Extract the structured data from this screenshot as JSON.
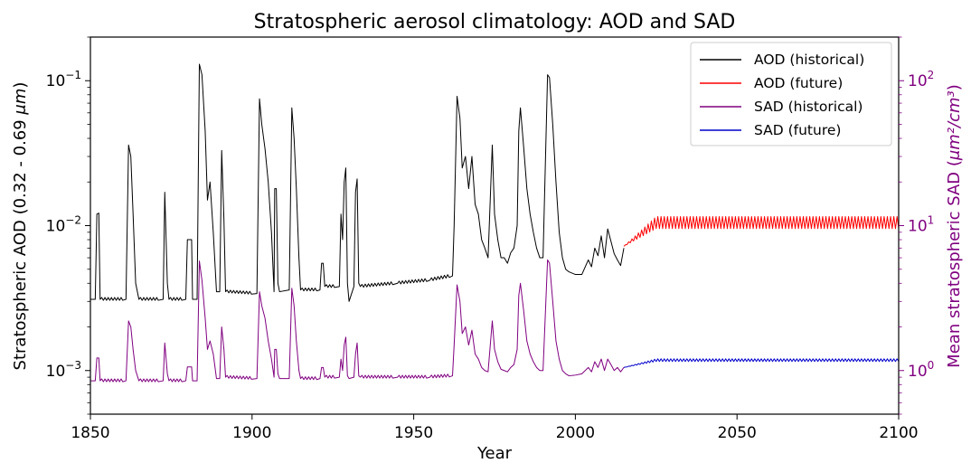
{
  "chart_data": {
    "type": "line",
    "title": "Stratospheric aerosol climatology: AOD and SAD",
    "xlabel": "Year",
    "ylabel_left_base": "Stratospheric AOD (0.32 - 0.69 ",
    "ylabel_left_unit": "μm",
    "ylabel_left_end": ")",
    "ylabel_right_base": "Mean stratospheric SAD (",
    "ylabel_right_unit": "μm²/cm³",
    "ylabel_right_end": ")",
    "xlim": [
      1850,
      2100
    ],
    "ylim_left": [
      0.0005,
      0.2
    ],
    "ylim_right": [
      0.5,
      200
    ],
    "yscale": "log",
    "grid": false,
    "legend_position": "top-right",
    "xticks": [
      "1850",
      "1900",
      "1950",
      "2000",
      "2050",
      "2100"
    ],
    "yticks_left": [
      {
        "base": "10",
        "exp": "−3",
        "value": 0.001
      },
      {
        "base": "10",
        "exp": "−2",
        "value": 0.01
      },
      {
        "base": "10",
        "exp": "−1",
        "value": 0.1
      }
    ],
    "yticks_right": [
      {
        "base": "10",
        "exp": "0",
        "value": 1
      },
      {
        "base": "10",
        "exp": "1",
        "value": 10
      },
      {
        "base": "10",
        "exp": "2",
        "value": 100
      }
    ],
    "colors": {
      "aod_hist": "#000000",
      "aod_fut": "#ff0000",
      "sad_hist": "#800080",
      "sad_fut": "#0000cc",
      "right_axis": "#800080"
    },
    "series": [
      {
        "name": "AOD (historical)",
        "axis": "left",
        "color": "#000000",
        "points": [
          [
            1850,
            0.0031
          ],
          [
            1851.5,
            0.0031
          ],
          [
            1852,
            0.012
          ],
          [
            1852.6,
            0.0122
          ],
          [
            1853,
            0.0031
          ],
          [
            1861,
            0.0031
          ],
          [
            1861.8,
            0.036
          ],
          [
            1862.5,
            0.03
          ],
          [
            1863.2,
            0.012
          ],
          [
            1864,
            0.004
          ],
          [
            1865,
            0.0031
          ],
          [
            1872.5,
            0.0031
          ],
          [
            1873,
            0.017
          ],
          [
            1873.8,
            0.004
          ],
          [
            1874.3,
            0.0031
          ],
          [
            1879.5,
            0.0031
          ],
          [
            1880,
            0.008
          ],
          [
            1881.3,
            0.008
          ],
          [
            1881.6,
            0.0031
          ],
          [
            1883,
            0.0031
          ],
          [
            1883.7,
            0.13
          ],
          [
            1884.5,
            0.11
          ],
          [
            1885.5,
            0.045
          ],
          [
            1886.2,
            0.015
          ],
          [
            1887,
            0.02
          ],
          [
            1888,
            0.009
          ],
          [
            1889,
            0.0035
          ],
          [
            1890,
            0.0035
          ],
          [
            1890.6,
            0.033
          ],
          [
            1891.3,
            0.011
          ],
          [
            1891.8,
            0.0035
          ],
          [
            1901.5,
            0.0034
          ],
          [
            1902.3,
            0.075
          ],
          [
            1903,
            0.05
          ],
          [
            1904,
            0.034
          ],
          [
            1905,
            0.02
          ],
          [
            1906,
            0.009
          ],
          [
            1906.8,
            0.0035
          ],
          [
            1907,
            0.018
          ],
          [
            1907.5,
            0.018
          ],
          [
            1908,
            0.004
          ],
          [
            1908.5,
            0.0035
          ],
          [
            1911.5,
            0.0036
          ],
          [
            1912.3,
            0.065
          ],
          [
            1913,
            0.04
          ],
          [
            1913.7,
            0.018
          ],
          [
            1914.5,
            0.006
          ],
          [
            1915,
            0.0036
          ],
          [
            1921,
            0.0036
          ],
          [
            1921.5,
            0.0055
          ],
          [
            1922,
            0.0055
          ],
          [
            1922.5,
            0.0038
          ],
          [
            1927,
            0.0038
          ],
          [
            1927.5,
            0.012
          ],
          [
            1928,
            0.008
          ],
          [
            1928.5,
            0.02
          ],
          [
            1929,
            0.025
          ],
          [
            1929.5,
            0.004
          ],
          [
            1930,
            0.003
          ],
          [
            1931.5,
            0.0038
          ],
          [
            1932,
            0.017
          ],
          [
            1932.5,
            0.021
          ],
          [
            1933,
            0.004
          ],
          [
            1933.5,
            0.0038
          ],
          [
            1945,
            0.004
          ],
          [
            1955,
            0.0042
          ],
          [
            1962,
            0.0045
          ],
          [
            1962.5,
            0.01
          ],
          [
            1963.4,
            0.078
          ],
          [
            1964.3,
            0.055
          ],
          [
            1965,
            0.025
          ],
          [
            1966,
            0.03
          ],
          [
            1967,
            0.018
          ],
          [
            1968,
            0.03
          ],
          [
            1969,
            0.014
          ],
          [
            1970,
            0.012
          ],
          [
            1971,
            0.008
          ],
          [
            1972,
            0.007
          ],
          [
            1973,
            0.006
          ],
          [
            1974.3,
            0.036
          ],
          [
            1975,
            0.012
          ],
          [
            1976,
            0.008
          ],
          [
            1977,
            0.006
          ],
          [
            1978,
            0.006
          ],
          [
            1979,
            0.0055
          ],
          [
            1980,
            0.0065
          ],
          [
            1981,
            0.007
          ],
          [
            1982,
            0.01
          ],
          [
            1982.5,
            0.045
          ],
          [
            1983,
            0.065
          ],
          [
            1984,
            0.035
          ],
          [
            1985,
            0.018
          ],
          [
            1986,
            0.012
          ],
          [
            1987,
            0.009
          ],
          [
            1988,
            0.007
          ],
          [
            1989,
            0.006
          ],
          [
            1990,
            0.006
          ],
          [
            1991.4,
            0.11
          ],
          [
            1992,
            0.105
          ],
          [
            1993,
            0.05
          ],
          [
            1994,
            0.02
          ],
          [
            1995,
            0.009
          ],
          [
            1996,
            0.006
          ],
          [
            1997,
            0.005
          ],
          [
            1998,
            0.0048
          ],
          [
            2000,
            0.0046
          ],
          [
            2002,
            0.0046
          ],
          [
            2004,
            0.0058
          ],
          [
            2005,
            0.0052
          ],
          [
            2006,
            0.007
          ],
          [
            2007,
            0.0062
          ],
          [
            2008,
            0.0085
          ],
          [
            2009,
            0.006
          ],
          [
            2010,
            0.0095
          ],
          [
            2011,
            0.0078
          ],
          [
            2012,
            0.0064
          ],
          [
            2013,
            0.0058
          ],
          [
            2014,
            0.0053
          ],
          [
            2015,
            0.007
          ]
        ]
      },
      {
        "name": "AOD (future)",
        "axis": "left",
        "color": "#ff0000",
        "start": [
          2015,
          0.0072
        ],
        "ramp_to": [
          2025,
          0.0105
        ],
        "end": [
          2100,
          0.0105
        ],
        "oscillation": [
          0.0095,
          0.0115
        ]
      },
      {
        "name": "SAD (historical)",
        "axis": "right",
        "color": "#800080",
        "points": [
          [
            1850,
            0.85
          ],
          [
            1851.5,
            0.85
          ],
          [
            1852,
            1.22
          ],
          [
            1852.6,
            1.22
          ],
          [
            1853,
            0.85
          ],
          [
            1861,
            0.85
          ],
          [
            1861.8,
            2.2
          ],
          [
            1862.5,
            2
          ],
          [
            1863.2,
            1.4
          ],
          [
            1864,
            1
          ],
          [
            1865,
            0.85
          ],
          [
            1872.5,
            0.85
          ],
          [
            1873,
            1.55
          ],
          [
            1873.8,
            0.95
          ],
          [
            1874.3,
            0.85
          ],
          [
            1879.5,
            0.85
          ],
          [
            1880,
            1.06
          ],
          [
            1881.3,
            1.06
          ],
          [
            1881.6,
            0.85
          ],
          [
            1883,
            0.85
          ],
          [
            1883.7,
            5.7
          ],
          [
            1884.5,
            4.2
          ],
          [
            1885.5,
            2.3
          ],
          [
            1886.2,
            1.4
          ],
          [
            1887,
            1.6
          ],
          [
            1888,
            1.3
          ],
          [
            1889,
            0.88
          ],
          [
            1890,
            0.88
          ],
          [
            1890.6,
            2
          ],
          [
            1891.3,
            1.4
          ],
          [
            1891.8,
            0.9
          ],
          [
            1901.5,
            0.88
          ],
          [
            1902.3,
            3.5
          ],
          [
            1903,
            2.8
          ],
          [
            1904,
            2.3
          ],
          [
            1905,
            1.6
          ],
          [
            1906,
            1.2
          ],
          [
            1906.8,
            0.9
          ],
          [
            1907,
            1.4
          ],
          [
            1907.5,
            1.4
          ],
          [
            1908,
            0.95
          ],
          [
            1908.5,
            0.88
          ],
          [
            1911.5,
            0.88
          ],
          [
            1912.3,
            3.7
          ],
          [
            1913,
            2.8
          ],
          [
            1913.7,
            1.6
          ],
          [
            1914.5,
            1
          ],
          [
            1915,
            0.88
          ],
          [
            1921,
            0.88
          ],
          [
            1921.5,
            1.05
          ],
          [
            1922,
            1.05
          ],
          [
            1922.5,
            0.9
          ],
          [
            1927,
            0.9
          ],
          [
            1927.5,
            1.2
          ],
          [
            1928,
            1.0
          ],
          [
            1928.5,
            1.5
          ],
          [
            1929,
            1.7
          ],
          [
            1929.5,
            0.92
          ],
          [
            1930,
            0.88
          ],
          [
            1931.5,
            0.9
          ],
          [
            1932,
            1.3
          ],
          [
            1932.5,
            1.55
          ],
          [
            1933,
            0.92
          ],
          [
            1933.5,
            0.9
          ],
          [
            1945,
            0.9
          ],
          [
            1955,
            0.9
          ],
          [
            1962,
            0.92
          ],
          [
            1962.5,
            1.5
          ],
          [
            1963.4,
            3.9
          ],
          [
            1964.3,
            3
          ],
          [
            1965,
            1.8
          ],
          [
            1966,
            2
          ],
          [
            1967,
            1.5
          ],
          [
            1968,
            1.9
          ],
          [
            1969,
            1.3
          ],
          [
            1970,
            1.2
          ],
          [
            1971,
            1.05
          ],
          [
            1972,
            1
          ],
          [
            1973,
            0.98
          ],
          [
            1974.3,
            2.2
          ],
          [
            1975,
            1.4
          ],
          [
            1976,
            1.15
          ],
          [
            1977,
            1.02
          ],
          [
            1978,
            1.0
          ],
          [
            1979,
            0.98
          ],
          [
            1980,
            1.05
          ],
          [
            1981,
            1.1
          ],
          [
            1982,
            1.4
          ],
          [
            1982.5,
            3.3
          ],
          [
            1983,
            4.0
          ],
          [
            1984,
            2.6
          ],
          [
            1985,
            1.6
          ],
          [
            1986,
            1.3
          ],
          [
            1987,
            1.15
          ],
          [
            1988,
            1.05
          ],
          [
            1989,
            1.0
          ],
          [
            1990,
            1.0
          ],
          [
            1991.4,
            5.8
          ],
          [
            1992,
            5.5
          ],
          [
            1993,
            3
          ],
          [
            1994,
            1.6
          ],
          [
            1995,
            1.2
          ],
          [
            1996,
            1.0
          ],
          [
            1997,
            0.95
          ],
          [
            1998,
            0.92
          ],
          [
            2000,
            0.93
          ],
          [
            2002,
            0.95
          ],
          [
            2004,
            1.05
          ],
          [
            2005,
            0.98
          ],
          [
            2006,
            1.15
          ],
          [
            2007,
            1.05
          ],
          [
            2008,
            1.2
          ],
          [
            2009,
            1.0
          ],
          [
            2010,
            1.2
          ],
          [
            2011,
            1.1
          ],
          [
            2012,
            1.0
          ],
          [
            2013,
            1.05
          ],
          [
            2014,
            0.98
          ],
          [
            2015,
            1.05
          ]
        ]
      },
      {
        "name": "SAD (future)",
        "axis": "right",
        "color": "#0000cc",
        "start": [
          2015,
          1.05
        ],
        "ramp_to": [
          2025,
          1.18
        ],
        "end": [
          2100,
          1.18
        ],
        "oscillation": [
          1.16,
          1.21
        ]
      }
    ]
  }
}
